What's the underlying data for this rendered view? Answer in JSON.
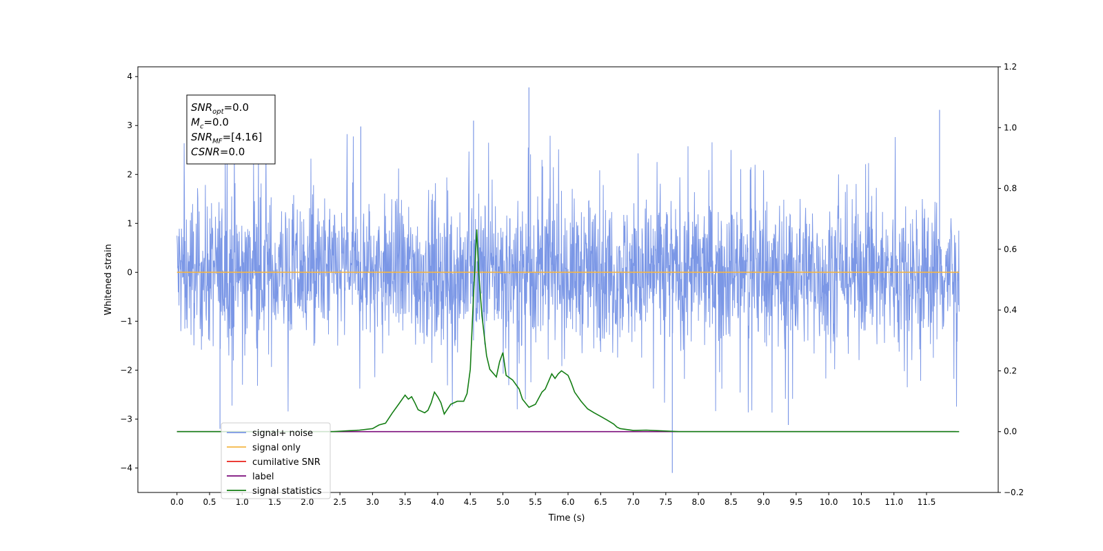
{
  "chart_data": {
    "type": "line",
    "xlabel": "Time (s)",
    "ylabel": "Whitened strain",
    "x_ticks": [
      "0.0",
      "0.5",
      "1.0",
      "1.5",
      "2.0",
      "2.5",
      "3.0",
      "3.5",
      "4.0",
      "4.5",
      "5.0",
      "5.5",
      "6.0",
      "6.5",
      "7.0",
      "7.5",
      "8.0",
      "8.5",
      "9.0",
      "9.5",
      "10.0",
      "10.5",
      "11.0",
      "11.5"
    ],
    "y_ticks": [
      "4",
      "3",
      "2",
      "1",
      "0",
      "−1",
      "−2",
      "−3",
      "−4"
    ],
    "y2_ticks": [
      "1.2",
      "1.0",
      "0.8",
      "0.6",
      "0.4",
      "0.2",
      "0.0",
      "−0.2"
    ],
    "xlim": [
      -0.6,
      12.6
    ],
    "ylim": [
      -4.5,
      4.2
    ],
    "y2lim": [
      -0.2,
      1.2
    ],
    "grid": false,
    "legend_position": "lower-left",
    "annotation_box": {
      "lines": [
        {
          "base": "SNR",
          "sub": "opt",
          "value": "=0.0"
        },
        {
          "base": "M",
          "sub": "c",
          "value": "=0.0"
        },
        {
          "base": "SNR",
          "sub": "MF",
          "value": "=[4.16]"
        },
        {
          "base": "CSNR",
          "sub": "",
          "value": "=0.0"
        }
      ]
    },
    "series": [
      {
        "name": "signal+ noise",
        "color": "#7b97e6",
        "axis": "left",
        "style": "noise",
        "t_range": [
          0.0,
          12.0
        ],
        "typical_envelope": [
          -1.7,
          1.9
        ],
        "extremes": [
          [
            0.66,
            -3.2
          ],
          [
            5.4,
            3.78
          ],
          [
            7.6,
            -4.1
          ],
          [
            11.7,
            3.32
          ],
          [
            4.55,
            3.1
          ],
          [
            2.82,
            2.98
          ],
          [
            9.38,
            -3.12
          ]
        ]
      },
      {
        "name": "signal only",
        "color": "#f5b642",
        "axis": "left",
        "x": [
          0.0,
          12.0
        ],
        "values": [
          0.0,
          0.0
        ]
      },
      {
        "name": "cumilative SNR",
        "color": "#e8211a",
        "axis": "left",
        "x": [],
        "values": []
      },
      {
        "name": "label",
        "color": "#7a0a7a",
        "axis": "right",
        "x": [
          0.0,
          11.95
        ],
        "values": [
          0.0,
          0.0
        ]
      },
      {
        "name": "signal statistics",
        "color": "#137d13",
        "axis": "right",
        "x": [
          0.0,
          2.4,
          2.8,
          3.0,
          3.1,
          3.2,
          3.3,
          3.4,
          3.5,
          3.55,
          3.6,
          3.65,
          3.7,
          3.8,
          3.85,
          3.9,
          3.95,
          4.0,
          4.05,
          4.1,
          4.2,
          4.3,
          4.4,
          4.45,
          4.5,
          4.55,
          4.6,
          4.63,
          4.68,
          4.75,
          4.8,
          4.9,
          4.95,
          5.0,
          5.05,
          5.15,
          5.25,
          5.3,
          5.4,
          5.5,
          5.6,
          5.65,
          5.75,
          5.8,
          5.85,
          5.9,
          6.0,
          6.05,
          6.1,
          6.2,
          6.3,
          6.4,
          6.5,
          6.6,
          6.7,
          6.75,
          6.8,
          7.0,
          7.2,
          7.5,
          7.7,
          8.0,
          12.0,
          11.95
        ],
        "values": [
          0.0,
          0.0,
          0.005,
          0.01,
          0.022,
          0.028,
          0.06,
          0.09,
          0.12,
          0.107,
          0.115,
          0.095,
          0.072,
          0.062,
          0.07,
          0.095,
          0.13,
          0.115,
          0.095,
          0.058,
          0.09,
          0.1,
          0.1,
          0.125,
          0.205,
          0.45,
          0.665,
          0.52,
          0.38,
          0.25,
          0.205,
          0.18,
          0.23,
          0.26,
          0.185,
          0.17,
          0.14,
          0.107,
          0.08,
          0.09,
          0.13,
          0.14,
          0.19,
          0.175,
          0.19,
          0.2,
          0.185,
          0.16,
          0.13,
          0.1,
          0.075,
          0.062,
          0.05,
          0.038,
          0.025,
          0.015,
          0.01,
          0.004,
          0.005,
          0.002,
          0.0,
          0.0,
          0.0,
          0.0
        ]
      }
    ]
  }
}
